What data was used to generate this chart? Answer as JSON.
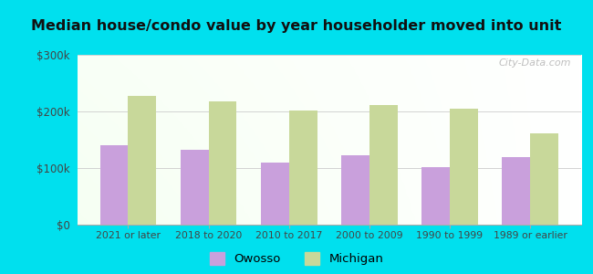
{
  "title": "Median house/condo value by year householder moved into unit",
  "categories": [
    "2021 or later",
    "2018 to 2020",
    "2010 to 2017",
    "2000 to 2009",
    "1990 to 1999",
    "1989 or earlier"
  ],
  "owosso_values": [
    140000,
    132000,
    110000,
    123000,
    102000,
    120000
  ],
  "michigan_values": [
    228000,
    218000,
    202000,
    212000,
    205000,
    162000
  ],
  "owosso_color": "#c9a0dc",
  "michigan_color": "#c8d89a",
  "background_outer": "#00e0ee",
  "ylim": [
    0,
    300000
  ],
  "yticks": [
    0,
    100000,
    200000,
    300000
  ],
  "ytick_labels": [
    "$0",
    "$100k",
    "$200k",
    "$300k"
  ],
  "bar_width": 0.35,
  "legend_labels": [
    "Owosso",
    "Michigan"
  ],
  "watermark": "City-Data.com"
}
